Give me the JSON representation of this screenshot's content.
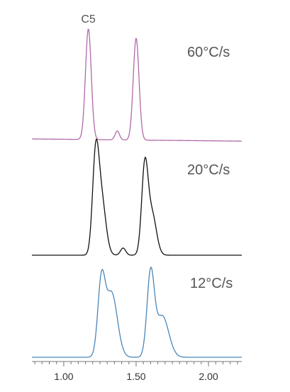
{
  "chart_data": {
    "type": "line",
    "xlim": [
      0.78,
      2.23
    ],
    "x_ticks": [
      {
        "value": 1.0,
        "label": "1.00"
      },
      {
        "value": 1.5,
        "label": "1.50"
      },
      {
        "value": 2.0,
        "label": "2.00"
      }
    ],
    "minor_tick_step": 0.05,
    "grid": false,
    "annotations": [
      {
        "text": "C5",
        "x": 1.17,
        "panel": 0
      }
    ],
    "panels": [
      {
        "label": "60°C/s",
        "color": "#b06aa8",
        "peaks": [
          {
            "x": 1.17,
            "height": 1.0,
            "width": 0.02
          },
          {
            "x": 1.37,
            "height": 0.08,
            "width": 0.015
          },
          {
            "x": 1.5,
            "height": 0.92,
            "width": 0.02
          }
        ],
        "drift": -0.02
      },
      {
        "label": "20°C/s",
        "color": "#111111",
        "peaks": [
          {
            "x": 1.22,
            "height": 0.88,
            "width": 0.022
          },
          {
            "x": 1.26,
            "height": 0.55,
            "width": 0.03
          },
          {
            "x": 1.41,
            "height": 0.07,
            "width": 0.018
          },
          {
            "x": 1.56,
            "height": 0.85,
            "width": 0.022
          },
          {
            "x": 1.61,
            "height": 0.4,
            "width": 0.03
          }
        ],
        "drift": 0.0
      },
      {
        "label": "12°C/s",
        "color": "#4a86b8",
        "peaks": [
          {
            "x": 1.26,
            "height": 0.78,
            "width": 0.025
          },
          {
            "x": 1.33,
            "height": 0.7,
            "width": 0.04
          },
          {
            "x": 1.6,
            "height": 0.88,
            "width": 0.025
          },
          {
            "x": 1.68,
            "height": 0.45,
            "width": 0.045
          }
        ],
        "drift": 0.0
      }
    ]
  }
}
